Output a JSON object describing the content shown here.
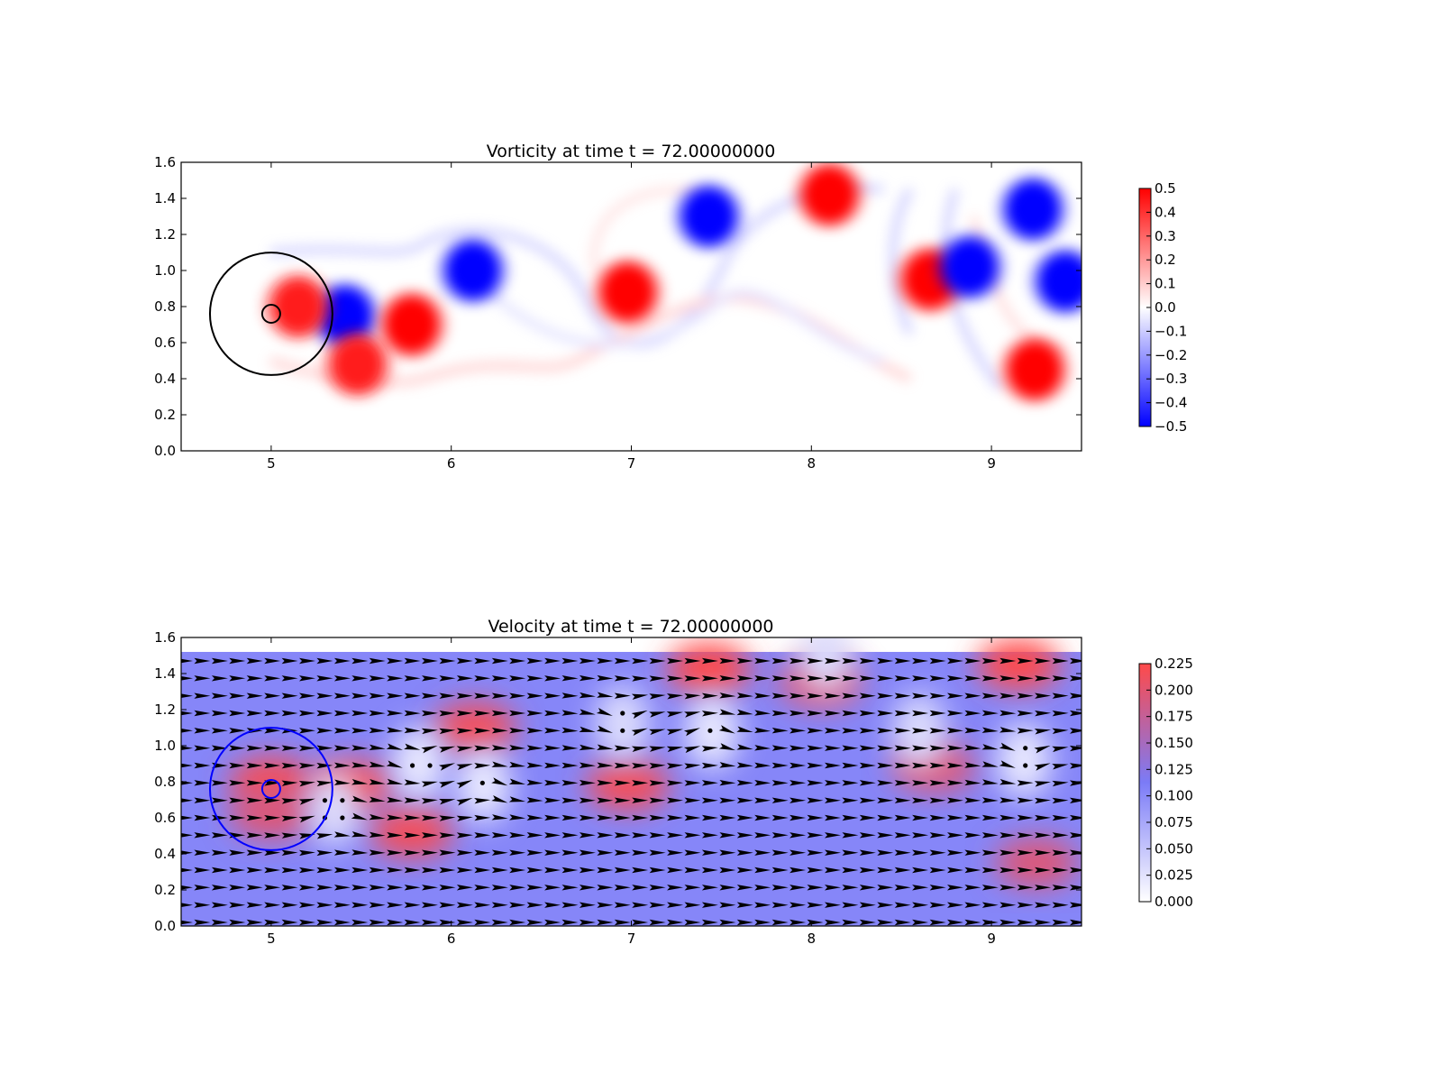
{
  "chart_data": [
    {
      "type": "heatmap",
      "title": "Vorticity at time t =    72.00000000",
      "xlim": [
        4.5,
        9.5
      ],
      "ylim": [
        0.0,
        1.6
      ],
      "xticks": [
        "5",
        "6",
        "7",
        "8",
        "9"
      ],
      "yticks": [
        "0.0",
        "0.2",
        "0.4",
        "0.6",
        "0.8",
        "1.0",
        "1.2",
        "1.4",
        "1.6"
      ],
      "colormap": {
        "low": "#0000ff",
        "mid": "#ffffff",
        "high": "#ff0000"
      },
      "colorbar": {
        "range": [
          -0.5,
          0.5
        ],
        "ticks": [
          "0.5",
          "0.4",
          "0.3",
          "0.2",
          "0.1",
          "0.0",
          "−0.1",
          "−0.2",
          "−0.3",
          "−0.4",
          "−0.5"
        ]
      },
      "vortices": [
        {
          "x": 6.12,
          "y": 1.0,
          "value": -0.5
        },
        {
          "x": 5.41,
          "y": 0.75,
          "value": -0.5
        },
        {
          "x": 5.78,
          "y": 0.7,
          "value": 0.5
        },
        {
          "x": 5.15,
          "y": 0.8,
          "value": 0.45
        },
        {
          "x": 5.48,
          "y": 0.48,
          "value": 0.45
        },
        {
          "x": 6.98,
          "y": 0.88,
          "value": 0.5
        },
        {
          "x": 7.43,
          "y": 1.3,
          "value": -0.5
        },
        {
          "x": 8.1,
          "y": 1.42,
          "value": 0.5
        },
        {
          "x": 8.66,
          "y": 0.95,
          "value": 0.5
        },
        {
          "x": 8.88,
          "y": 1.02,
          "value": -0.5
        },
        {
          "x": 9.23,
          "y": 1.34,
          "value": -0.5
        },
        {
          "x": 9.41,
          "y": 0.94,
          "value": -0.5
        },
        {
          "x": 9.24,
          "y": 0.45,
          "value": 0.5
        }
      ],
      "circles": [
        {
          "cx": 5.0,
          "cy": 0.76,
          "r": 0.34,
          "color": "#000000"
        },
        {
          "cx": 5.0,
          "cy": 0.76,
          "r": 0.05,
          "color": "#000000"
        }
      ]
    },
    {
      "type": "heatmap",
      "title": "Velocity at time t =    72.00000000",
      "xlim": [
        4.5,
        9.5
      ],
      "ylim": [
        0.0,
        1.6
      ],
      "xticks": [
        "5",
        "6",
        "7",
        "8",
        "9"
      ],
      "yticks": [
        "0.0",
        "0.2",
        "0.4",
        "0.6",
        "0.8",
        "1.0",
        "1.2",
        "1.4",
        "1.6"
      ],
      "colormap": {
        "low": "#ffffff",
        "mid": "#7b7bf7",
        "high": "#ff4a4a"
      },
      "colorbar": {
        "range": [
          0.0,
          0.23
        ],
        "ticks": [
          "0.225",
          "0.200",
          "0.175",
          "0.150",
          "0.125",
          "0.100",
          "0.075",
          "0.050",
          "0.025",
          "0.000"
        ]
      },
      "background_speed": 0.105,
      "fast_zones": [
        {
          "x": 5.0,
          "y": 0.8,
          "speed": 0.22
        },
        {
          "x": 5.0,
          "y": 0.62,
          "speed": 0.2
        },
        {
          "x": 5.45,
          "y": 0.78,
          "speed": 0.22
        },
        {
          "x": 5.78,
          "y": 0.52,
          "speed": 0.22
        },
        {
          "x": 6.13,
          "y": 1.1,
          "speed": 0.22
        },
        {
          "x": 6.98,
          "y": 0.78,
          "speed": 0.22
        },
        {
          "x": 7.43,
          "y": 1.43,
          "speed": 0.23
        },
        {
          "x": 8.05,
          "y": 1.35,
          "speed": 0.2
        },
        {
          "x": 8.68,
          "y": 0.88,
          "speed": 0.2
        },
        {
          "x": 9.15,
          "y": 1.45,
          "speed": 0.23
        },
        {
          "x": 9.25,
          "y": 0.35,
          "speed": 0.2
        }
      ],
      "slow_zones": [
        {
          "x": 5.82,
          "y": 0.9,
          "speed": 0.02
        },
        {
          "x": 6.18,
          "y": 0.78,
          "speed": 0.02
        },
        {
          "x": 6.95,
          "y": 1.12,
          "speed": 0.03
        },
        {
          "x": 7.45,
          "y": 1.08,
          "speed": 0.02
        },
        {
          "x": 8.08,
          "y": 1.5,
          "speed": 0.03
        },
        {
          "x": 8.6,
          "y": 1.08,
          "speed": 0.03
        },
        {
          "x": 9.18,
          "y": 0.92,
          "speed": 0.02
        },
        {
          "x": 5.35,
          "y": 0.65,
          "speed": 0.03
        }
      ],
      "vortex_centers": [
        {
          "x": 5.82,
          "y": 0.9,
          "sign": 1
        },
        {
          "x": 6.18,
          "y": 0.78,
          "sign": -1
        },
        {
          "x": 6.95,
          "y": 1.12,
          "sign": 1
        },
        {
          "x": 7.45,
          "y": 1.08,
          "sign": -1
        },
        {
          "x": 9.18,
          "y": 0.92,
          "sign": 1
        },
        {
          "x": 5.35,
          "y": 0.65,
          "sign": -1
        }
      ],
      "circles": [
        {
          "cx": 5.0,
          "cy": 0.76,
          "r": 0.34,
          "color": "#0000ff"
        },
        {
          "cx": 5.0,
          "cy": 0.76,
          "r": 0.05,
          "color": "#0000ff"
        }
      ]
    }
  ]
}
